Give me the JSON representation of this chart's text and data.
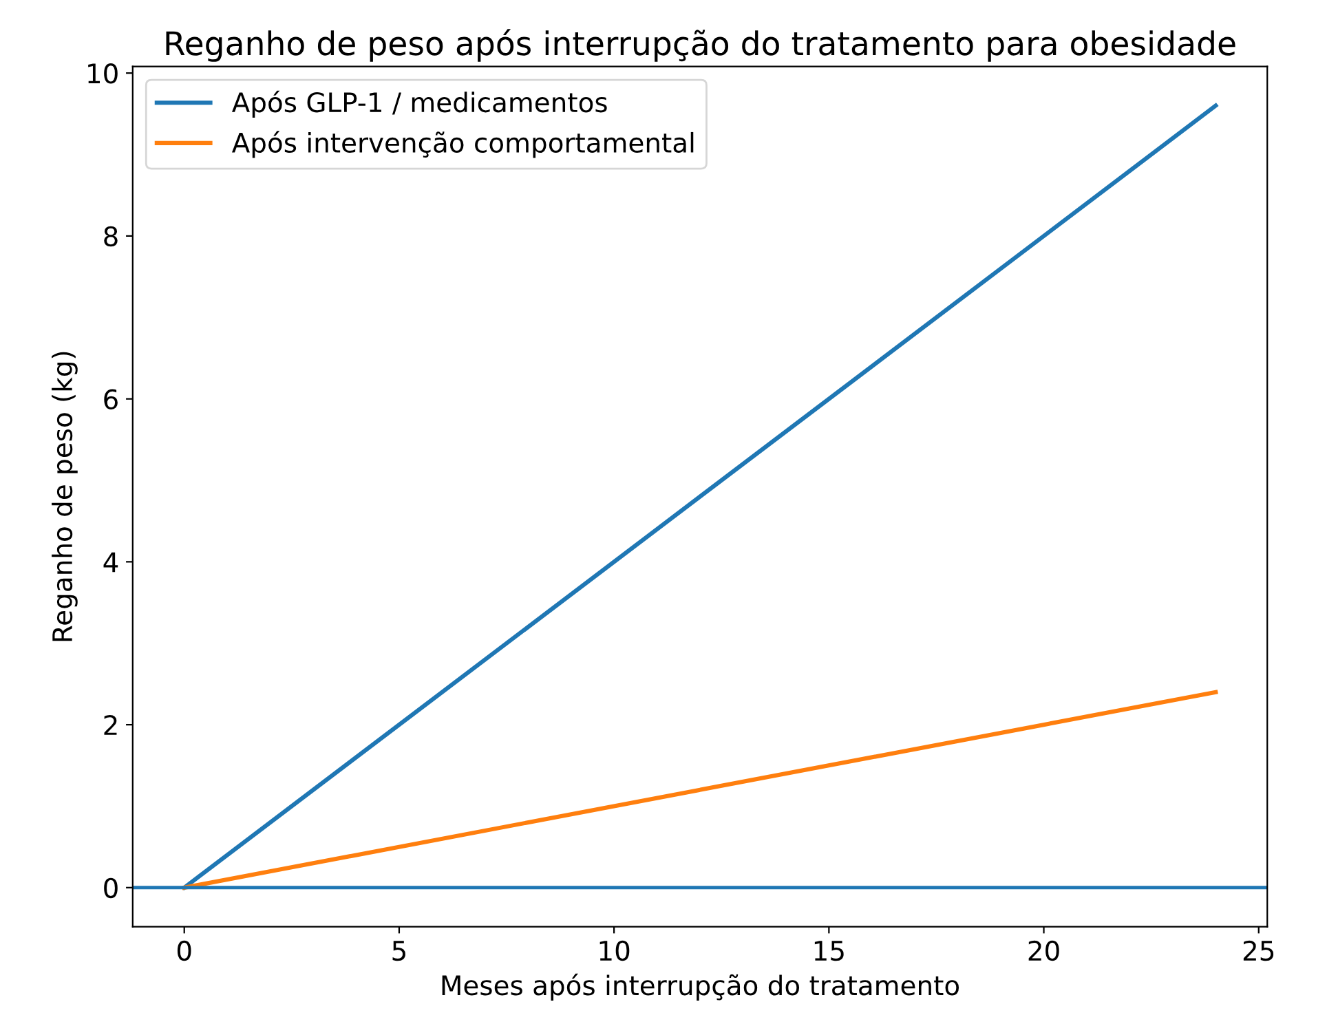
{
  "chart_data": {
    "type": "line",
    "title": "Reganho de peso após interrupção do tratamento para obesidade",
    "xlabel": "Meses após interrupção do tratamento",
    "ylabel": "Reganho de peso (kg)",
    "series": [
      {
        "name": "Após GLP-1 / medicamentos",
        "color": "#1f77b4",
        "values": [
          0,
          9.6
        ]
      },
      {
        "name": "Após intervenção comportamental",
        "color": "#ff7f0e",
        "values": [
          0,
          2.4
        ]
      }
    ],
    "x": [
      0,
      24
    ],
    "ref_lines": [
      {
        "axis": "y",
        "value": 0,
        "color": "#1f77b4",
        "line_style": "solid"
      }
    ],
    "xlim": [
      -1.2,
      25.2
    ],
    "ylim": [
      -0.48,
      10.08
    ],
    "xticks": [
      0,
      5,
      10,
      15,
      20,
      25
    ],
    "yticks": [
      0,
      2,
      4,
      6,
      8,
      10
    ],
    "grid": false,
    "legend": "top left",
    "marker": "none",
    "line_style": "solid"
  }
}
